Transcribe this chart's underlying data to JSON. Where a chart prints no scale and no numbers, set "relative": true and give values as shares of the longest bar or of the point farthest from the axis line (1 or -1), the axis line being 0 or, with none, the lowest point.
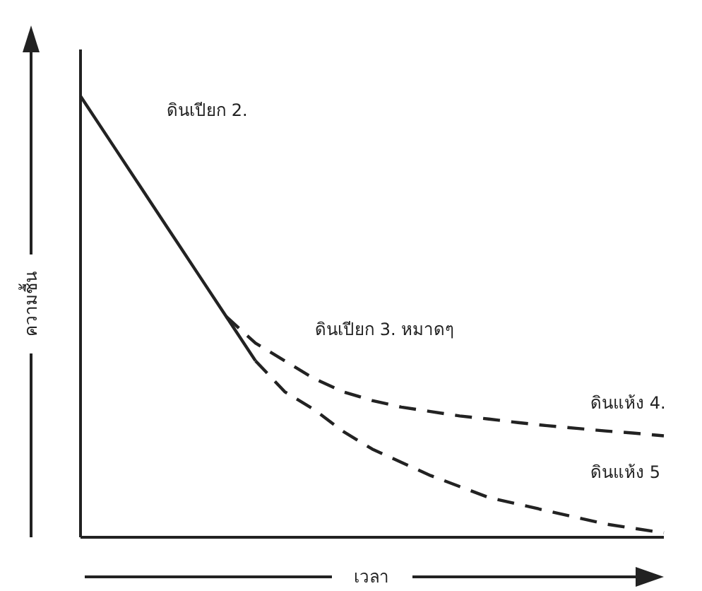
{
  "chart_data": {
    "type": "line",
    "relative": true,
    "xlabel": "เวลา",
    "ylabel": "ความชื้น",
    "line_style": "dashed",
    "categories": [
      null,
      null,
      null,
      null,
      null,
      null,
      null,
      null,
      null,
      null,
      null,
      null,
      null,
      null,
      null,
      null,
      null,
      null,
      null,
      null,
      null
    ],
    "series": [
      {
        "values": [
          1.0,
          0.9,
          0.8,
          0.7,
          0.6,
          0.5,
          0.4,
          null,
          null,
          null,
          null,
          null,
          null,
          null,
          null,
          null,
          null,
          null,
          null,
          null,
          null
        ],
        "color": "#222222",
        "line_style": "solid"
      },
      {
        "values": [
          null,
          null,
          null,
          null,
          null,
          0.5,
          0.44,
          0.4,
          0.36,
          0.33,
          0.31,
          0.295,
          0.285,
          0.275,
          0.268,
          0.26,
          0.253,
          0.247,
          0.241,
          0.236,
          0.23
        ],
        "color": "#222222"
      },
      {
        "values": [
          null,
          null,
          null,
          null,
          null,
          null,
          0.4,
          0.33,
          0.29,
          0.24,
          0.2,
          0.17,
          0.14,
          0.115,
          0.09,
          0.075,
          0.06,
          0.045,
          0.03,
          0.02,
          0.01
        ],
        "color": "#222222"
      }
    ],
    "annotations": [
      "ดินเปียก 2.",
      "ดินเปียก 3. หมาดๆ",
      "ดินแห้ง 4.",
      "ดินแห้ง 5"
    ]
  }
}
